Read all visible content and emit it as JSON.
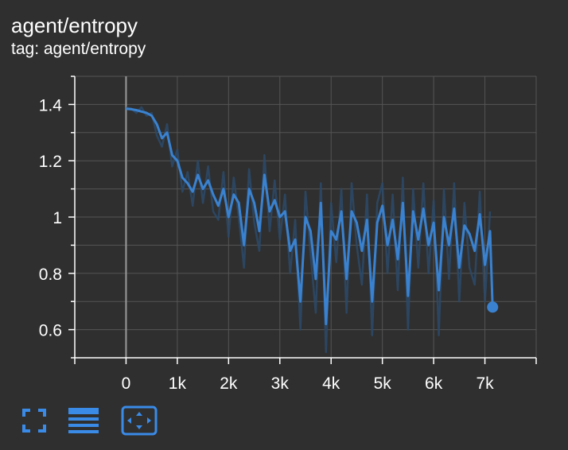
{
  "header": {
    "title": "agent/entropy",
    "subtitle": "tag: agent/entropy"
  },
  "toolbar": {
    "buttons": [
      {
        "name": "fullscreen-icon"
      },
      {
        "name": "data-table-icon"
      },
      {
        "name": "fit-domain-icon"
      }
    ]
  },
  "colors": {
    "background": "#2f2f2f",
    "smoothed_line": "#3a82d0",
    "raw_line": "#2c4a6a",
    "grid": "#555555",
    "axis": "#ffffff",
    "toolbar_icons": "#3a8be8"
  },
  "chart_data": {
    "type": "line",
    "title": "agent/entropy",
    "xlabel": "",
    "ylabel": "",
    "xlim": [
      -1000,
      8000
    ],
    "ylim": [
      0.5,
      1.5
    ],
    "xticks": [
      0,
      1000,
      2000,
      3000,
      4000,
      5000,
      6000,
      7000
    ],
    "xtick_labels": [
      "0",
      "1k",
      "2k",
      "3k",
      "4k",
      "5k",
      "6k",
      "7k"
    ],
    "yticks": [
      0.6,
      0.8,
      1.0,
      1.2,
      1.4
    ],
    "ytick_labels": [
      "0.6",
      "0.8",
      "1",
      "1.2",
      "1.4"
    ],
    "grid": true,
    "series": [
      {
        "role": "smoothed",
        "x": [
          0,
          100,
          200,
          300,
          400,
          500,
          600,
          700,
          800,
          900,
          1000,
          1100,
          1200,
          1300,
          1400,
          1500,
          1600,
          1700,
          1800,
          1900,
          2000,
          2100,
          2200,
          2300,
          2400,
          2500,
          2600,
          2700,
          2800,
          2900,
          3000,
          3100,
          3200,
          3300,
          3400,
          3500,
          3600,
          3700,
          3800,
          3900,
          4000,
          4100,
          4200,
          4300,
          4400,
          4500,
          4600,
          4700,
          4800,
          4900,
          5000,
          5100,
          5200,
          5300,
          5400,
          5500,
          5600,
          5700,
          5800,
          5900,
          6000,
          6100,
          6200,
          6300,
          6400,
          6500,
          6600,
          6700,
          6800,
          6900,
          7000,
          7100,
          7150
        ],
        "y": [
          1.385,
          1.383,
          1.38,
          1.375,
          1.37,
          1.36,
          1.33,
          1.28,
          1.3,
          1.22,
          1.2,
          1.14,
          1.12,
          1.09,
          1.15,
          1.1,
          1.13,
          1.08,
          1.04,
          1.1,
          1.0,
          1.08,
          1.05,
          0.9,
          1.1,
          1.05,
          0.95,
          1.15,
          1.02,
          1.06,
          1.0,
          1.02,
          0.88,
          0.92,
          0.7,
          1.0,
          0.95,
          0.78,
          1.05,
          0.62,
          0.95,
          0.92,
          1.02,
          0.78,
          1.02,
          0.98,
          0.88,
          0.99,
          0.7,
          0.98,
          1.04,
          0.9,
          0.99,
          0.85,
          1.05,
          0.72,
          1.02,
          0.92,
          1.03,
          0.9,
          0.98,
          0.74,
          1.0,
          0.9,
          1.03,
          0.82,
          0.97,
          0.94,
          0.88,
          1.01,
          0.83,
          0.95,
          0.68
        ]
      },
      {
        "role": "raw",
        "x": [
          0,
          100,
          200,
          300,
          400,
          500,
          600,
          700,
          800,
          900,
          1000,
          1100,
          1200,
          1300,
          1400,
          1500,
          1600,
          1700,
          1800,
          1900,
          2000,
          2100,
          2200,
          2300,
          2400,
          2500,
          2600,
          2700,
          2800,
          2900,
          3000,
          3100,
          3200,
          3300,
          3400,
          3500,
          3600,
          3700,
          3800,
          3900,
          4000,
          4100,
          4200,
          4300,
          4400,
          4500,
          4600,
          4700,
          4800,
          4900,
          5000,
          5100,
          5200,
          5300,
          5400,
          5500,
          5600,
          5700,
          5800,
          5900,
          6000,
          6100,
          6200,
          6300,
          6400,
          6500,
          6600,
          6700,
          6800,
          6900,
          7000,
          7100
        ],
        "y": [
          1.388,
          1.386,
          1.37,
          1.39,
          1.36,
          1.37,
          1.29,
          1.25,
          1.33,
          1.18,
          1.24,
          1.09,
          1.16,
          1.04,
          1.2,
          1.05,
          1.18,
          1.02,
          0.99,
          1.16,
          0.93,
          1.14,
          1.0,
          0.82,
          1.17,
          0.98,
          0.88,
          1.22,
          0.95,
          1.13,
          0.92,
          1.08,
          0.8,
          0.99,
          0.6,
          1.09,
          0.87,
          0.66,
          1.12,
          0.52,
          1.05,
          0.84,
          1.1,
          0.66,
          1.12,
          0.9,
          0.76,
          1.08,
          0.58,
          1.05,
          1.12,
          0.8,
          1.08,
          0.74,
          1.14,
          0.6,
          1.1,
          0.82,
          1.12,
          0.8,
          1.06,
          0.58,
          1.1,
          0.78,
          1.12,
          0.7,
          1.05,
          0.82,
          0.76,
          1.09,
          0.7,
          1.02
        ]
      }
    ],
    "last_point": {
      "x": 7150,
      "y": 0.68
    }
  }
}
